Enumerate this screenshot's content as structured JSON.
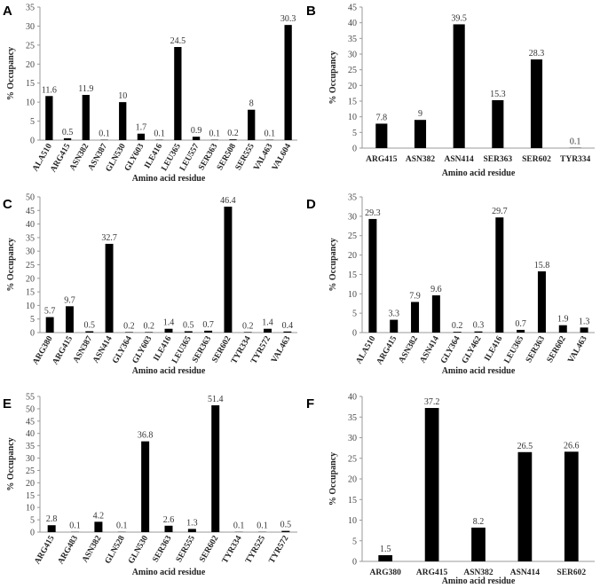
{
  "chart_data": [
    {
      "type": "bar",
      "label": "A",
      "y_label": "% Occupancy",
      "x_label": "Amino acid residue",
      "color": "#000000",
      "categories": [
        "ALA510",
        "ARG415",
        "ASN382",
        "ASN387",
        "GLN530",
        "GLY603",
        "ILE416",
        "LEU365",
        "LEU557",
        "SER363",
        "SER508",
        "SER555",
        "VAL463",
        "VAL604"
      ],
      "values": [
        11.6,
        0.5,
        11.9,
        0.1,
        10,
        1.7,
        0.1,
        24.5,
        0.9,
        0.1,
        0.2,
        8,
        0.1,
        30.3
      ],
      "ylim": [
        0,
        35
      ],
      "yticks": [
        0,
        5,
        10,
        15,
        20,
        25,
        30,
        35
      ]
    },
    {
      "type": "bar",
      "label": "B",
      "y_label": "% Occupancy",
      "x_label": "Amino acid residue",
      "color": "#000000",
      "categories": [
        "ARG415",
        "ASN382",
        "ASN414",
        "SER363",
        "SER602",
        "TYR334"
      ],
      "values": [
        7.8,
        9,
        39.5,
        15.3,
        28.3,
        0.1
      ],
      "ylim": [
        0,
        45
      ],
      "yticks": [
        0,
        5,
        10,
        15,
        20,
        25,
        30,
        35,
        40,
        45
      ]
    },
    {
      "type": "bar",
      "label": "C",
      "y_label": "% Occupancy",
      "x_label": "Amino acid residue",
      "color": "#000000",
      "categories": [
        "ARG380",
        "ARG415",
        "ASN387",
        "ASN414",
        "GLY364",
        "GLY603",
        "ILE416",
        "LEU365",
        "SER363",
        "SER602",
        "TYR334",
        "TYR572",
        "VAL463"
      ],
      "values": [
        5.7,
        9.7,
        0.5,
        32.7,
        0.2,
        0.2,
        1.4,
        0.5,
        0.7,
        46.4,
        0.2,
        1.4,
        0.4
      ],
      "ylim": [
        0,
        50
      ],
      "yticks": [
        0,
        5,
        10,
        15,
        20,
        25,
        30,
        35,
        40,
        45,
        50
      ]
    },
    {
      "type": "bar",
      "label": "D",
      "y_label": "% Occupancy",
      "x_label": "Amino acid residue",
      "color": "#000000",
      "categories": [
        "ALA510",
        "ARG415",
        "ASN382",
        "ASN414",
        "GLY364",
        "GLY462",
        "ILE416",
        "LEU365",
        "SER363",
        "SER602",
        "VAL463"
      ],
      "values": [
        29.3,
        3.3,
        7.9,
        9.6,
        0.2,
        0.3,
        29.7,
        0.7,
        15.8,
        1.9,
        1.3
      ],
      "ylim": [
        0,
        35
      ],
      "yticks": [
        0,
        5,
        10,
        15,
        20,
        25,
        30,
        35
      ]
    },
    {
      "type": "bar",
      "label": "E",
      "y_label": "% Occupancy",
      "x_label": "Amino acid residue",
      "color": "#000000",
      "categories": [
        "ARG415",
        "ARG483",
        "ASN382",
        "GLN528",
        "GLN530",
        "SER363",
        "SER555",
        "SER602",
        "TYR334",
        "TYR525",
        "TYR572"
      ],
      "values": [
        2.8,
        0.1,
        4.2,
        0.1,
        36.8,
        2.6,
        1.3,
        51.4,
        0.1,
        0.1,
        0.5
      ],
      "ylim": [
        0,
        55
      ],
      "yticks": [
        0,
        5,
        10,
        15,
        20,
        25,
        30,
        35,
        40,
        45,
        50,
        55
      ]
    },
    {
      "type": "bar",
      "label": "F",
      "y_label": "% Occupancy",
      "x_label": "Amino acid residue",
      "color": "#000000",
      "categories": [
        "ARG380",
        "ARG415",
        "ASN382",
        "ASN414",
        "SER602"
      ],
      "values": [
        1.5,
        37.2,
        8.2,
        26.5,
        26.6
      ],
      "ylim": [
        0,
        40
      ],
      "yticks": [
        0,
        5,
        10,
        15,
        20,
        25,
        30,
        35,
        40
      ]
    }
  ]
}
